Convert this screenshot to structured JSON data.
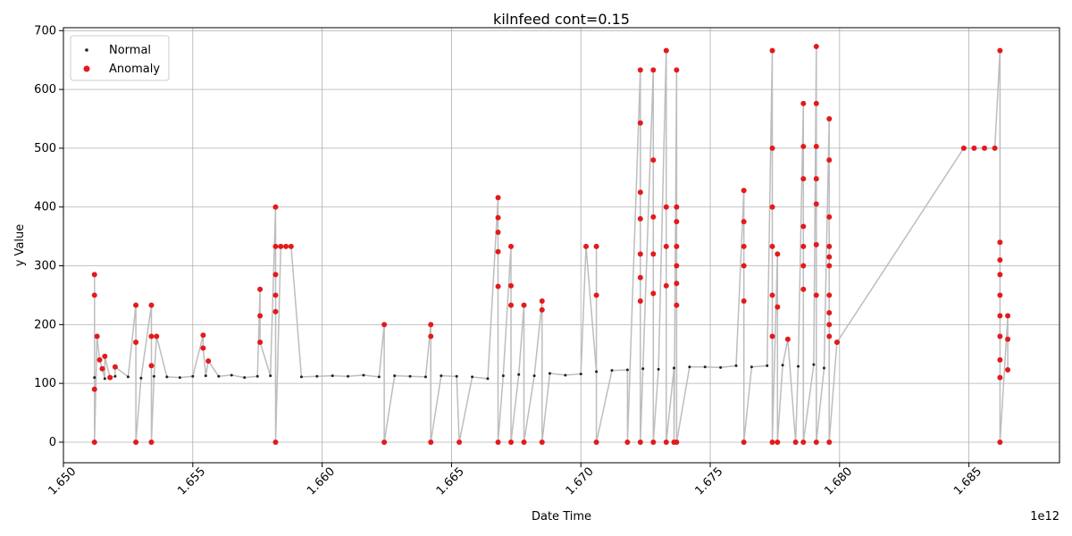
{
  "chart_data": {
    "type": "scatter",
    "title": "kilnfeed cont=0.15",
    "xlabel": "Date Time",
    "ylabel": "y Value",
    "x_offset_label": "1e12",
    "xlim": [
      1.65,
      1.6885
    ],
    "ylim": [
      -35,
      705
    ],
    "x_ticks": [
      1.65,
      1.655,
      1.66,
      1.665,
      1.67,
      1.675,
      1.68,
      1.685
    ],
    "x_tick_labels": [
      "1.650",
      "1.655",
      "1.660",
      "1.665",
      "1.670",
      "1.675",
      "1.680",
      "1.685"
    ],
    "y_ticks": [
      0,
      100,
      200,
      300,
      400,
      500,
      600,
      700
    ],
    "y_tick_labels": [
      "0",
      "100",
      "200",
      "300",
      "400",
      "500",
      "600",
      "700"
    ],
    "grid": true,
    "legend_position": "top-left",
    "colors": {
      "normal": "#222222",
      "anomaly": "#e31a1c",
      "line": "#bdbdbd",
      "grid": "#b0b0b0"
    },
    "series": [
      {
        "name": "Normal",
        "points": [
          [
            1.6512,
            110
          ],
          [
            1.6516,
            108
          ],
          [
            1.652,
            112
          ],
          [
            1.6525,
            111
          ],
          [
            1.653,
            109
          ],
          [
            1.6535,
            112
          ],
          [
            1.654,
            111
          ],
          [
            1.6545,
            110
          ],
          [
            1.655,
            112
          ],
          [
            1.6555,
            113
          ],
          [
            1.656,
            112
          ],
          [
            1.6565,
            114
          ],
          [
            1.657,
            110
          ],
          [
            1.6575,
            112
          ],
          [
            1.658,
            113
          ],
          [
            1.6592,
            111
          ],
          [
            1.6598,
            112
          ],
          [
            1.6604,
            113
          ],
          [
            1.661,
            112
          ],
          [
            1.6616,
            114
          ],
          [
            1.6622,
            111
          ],
          [
            1.6628,
            113
          ],
          [
            1.6634,
            112
          ],
          [
            1.664,
            111
          ],
          [
            1.6646,
            113
          ],
          [
            1.6652,
            112
          ],
          [
            1.6658,
            111
          ],
          [
            1.6664,
            108
          ],
          [
            1.667,
            113
          ],
          [
            1.6676,
            115
          ],
          [
            1.6682,
            113
          ],
          [
            1.6688,
            117
          ],
          [
            1.6694,
            114
          ],
          [
            1.67,
            116
          ],
          [
            1.6706,
            120
          ],
          [
            1.6712,
            122
          ],
          [
            1.6718,
            123
          ],
          [
            1.6724,
            125
          ],
          [
            1.673,
            124
          ],
          [
            1.6736,
            126
          ],
          [
            1.6742,
            128
          ],
          [
            1.6748,
            128
          ],
          [
            1.6754,
            127
          ],
          [
            1.676,
            130
          ],
          [
            1.6766,
            128
          ],
          [
            1.6772,
            130
          ],
          [
            1.6778,
            131
          ],
          [
            1.6784,
            129
          ],
          [
            1.679,
            132
          ],
          [
            1.6794,
            126
          ]
        ]
      },
      {
        "name": "Anomaly",
        "points": [
          [
            1.6512,
            285
          ],
          [
            1.6512,
            250
          ],
          [
            1.6512,
            90
          ],
          [
            1.6512,
            0
          ],
          [
            1.6513,
            180
          ],
          [
            1.6514,
            140
          ],
          [
            1.6515,
            125
          ],
          [
            1.6516,
            146
          ],
          [
            1.6518,
            110
          ],
          [
            1.652,
            128
          ],
          [
            1.6528,
            233
          ],
          [
            1.6528,
            170
          ],
          [
            1.6528,
            0
          ],
          [
            1.6534,
            233
          ],
          [
            1.6534,
            180
          ],
          [
            1.6534,
            130
          ],
          [
            1.6534,
            0
          ],
          [
            1.6536,
            180
          ],
          [
            1.6554,
            182
          ],
          [
            1.6554,
            160
          ],
          [
            1.6556,
            138
          ],
          [
            1.6576,
            260
          ],
          [
            1.6576,
            215
          ],
          [
            1.6576,
            170
          ],
          [
            1.6582,
            400
          ],
          [
            1.6582,
            333
          ],
          [
            1.6582,
            285
          ],
          [
            1.6582,
            250
          ],
          [
            1.6582,
            222
          ],
          [
            1.6582,
            0
          ],
          [
            1.6584,
            333
          ],
          [
            1.6586,
            333
          ],
          [
            1.6588,
            333
          ],
          [
            1.6624,
            200
          ],
          [
            1.6624,
            0
          ],
          [
            1.6642,
            200
          ],
          [
            1.6642,
            180
          ],
          [
            1.6642,
            0
          ],
          [
            1.6653,
            0
          ],
          [
            1.6668,
            416
          ],
          [
            1.6668,
            382
          ],
          [
            1.6668,
            357
          ],
          [
            1.6668,
            324
          ],
          [
            1.6668,
            265
          ],
          [
            1.6668,
            0
          ],
          [
            1.6673,
            333
          ],
          [
            1.6673,
            266
          ],
          [
            1.6673,
            233
          ],
          [
            1.6673,
            0
          ],
          [
            1.6678,
            233
          ],
          [
            1.6678,
            0
          ],
          [
            1.6685,
            240
          ],
          [
            1.6685,
            225
          ],
          [
            1.6685,
            0
          ],
          [
            1.6702,
            333
          ],
          [
            1.6706,
            333
          ],
          [
            1.6706,
            250
          ],
          [
            1.6706,
            0
          ],
          [
            1.6718,
            0
          ],
          [
            1.6723,
            633
          ],
          [
            1.6723,
            543
          ],
          [
            1.6723,
            425
          ],
          [
            1.6723,
            380
          ],
          [
            1.6723,
            320
          ],
          [
            1.6723,
            280
          ],
          [
            1.6723,
            240
          ],
          [
            1.6723,
            0
          ],
          [
            1.6728,
            633
          ],
          [
            1.6728,
            480
          ],
          [
            1.6728,
            383
          ],
          [
            1.6728,
            320
          ],
          [
            1.6728,
            253
          ],
          [
            1.6728,
            0
          ],
          [
            1.6733,
            666
          ],
          [
            1.6733,
            400
          ],
          [
            1.6733,
            333
          ],
          [
            1.6733,
            266
          ],
          [
            1.6733,
            0
          ],
          [
            1.6736,
            0
          ],
          [
            1.6737,
            633
          ],
          [
            1.6737,
            400
          ],
          [
            1.6737,
            375
          ],
          [
            1.6737,
            333
          ],
          [
            1.6737,
            300
          ],
          [
            1.6737,
            270
          ],
          [
            1.6737,
            233
          ],
          [
            1.6737,
            0
          ],
          [
            1.6763,
            428
          ],
          [
            1.6763,
            375
          ],
          [
            1.6763,
            333
          ],
          [
            1.6763,
            300
          ],
          [
            1.6763,
            240
          ],
          [
            1.6763,
            0
          ],
          [
            1.6774,
            666
          ],
          [
            1.6774,
            500
          ],
          [
            1.6774,
            400
          ],
          [
            1.6774,
            333
          ],
          [
            1.6774,
            250
          ],
          [
            1.6774,
            180
          ],
          [
            1.6774,
            0
          ],
          [
            1.6776,
            320
          ],
          [
            1.6776,
            230
          ],
          [
            1.6776,
            0
          ],
          [
            1.678,
            175
          ],
          [
            1.6783,
            0
          ],
          [
            1.6786,
            576
          ],
          [
            1.6786,
            503
          ],
          [
            1.6786,
            448
          ],
          [
            1.6786,
            367
          ],
          [
            1.6786,
            333
          ],
          [
            1.6786,
            300
          ],
          [
            1.6786,
            260
          ],
          [
            1.6786,
            0
          ],
          [
            1.6791,
            673
          ],
          [
            1.6791,
            576
          ],
          [
            1.6791,
            503
          ],
          [
            1.6791,
            448
          ],
          [
            1.6791,
            405
          ],
          [
            1.6791,
            336
          ],
          [
            1.6791,
            250
          ],
          [
            1.6791,
            0
          ],
          [
            1.6796,
            550
          ],
          [
            1.6796,
            480
          ],
          [
            1.6796,
            383
          ],
          [
            1.6796,
            333
          ],
          [
            1.6796,
            315
          ],
          [
            1.6796,
            300
          ],
          [
            1.6796,
            250
          ],
          [
            1.6796,
            220
          ],
          [
            1.6796,
            200
          ],
          [
            1.6796,
            180
          ],
          [
            1.6796,
            0
          ],
          [
            1.6799,
            170
          ],
          [
            1.6848,
            500
          ],
          [
            1.6852,
            500
          ],
          [
            1.6856,
            500
          ],
          [
            1.686,
            500
          ],
          [
            1.6862,
            666
          ],
          [
            1.6862,
            340
          ],
          [
            1.6862,
            310
          ],
          [
            1.6862,
            285
          ],
          [
            1.6862,
            250
          ],
          [
            1.6862,
            215
          ],
          [
            1.6862,
            180
          ],
          [
            1.6862,
            140
          ],
          [
            1.6862,
            110
          ],
          [
            1.6862,
            0
          ],
          [
            1.6865,
            215
          ],
          [
            1.6865,
            175
          ],
          [
            1.6865,
            123
          ]
        ]
      }
    ]
  }
}
